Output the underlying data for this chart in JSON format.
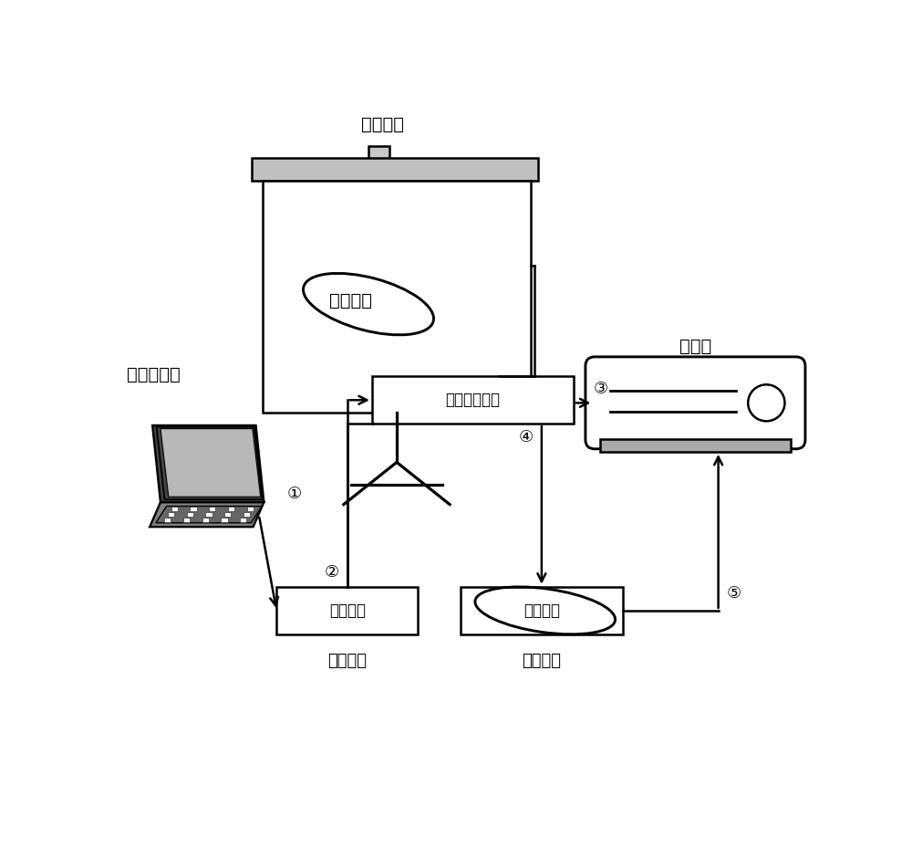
{
  "bg_color": "#ffffff",
  "text_color": "#000000",
  "label_screen": "白色幕布",
  "label_laptop": "笔记本电脑",
  "label_projector": "投影仪",
  "label_sys_box": "视频会议系统",
  "label_buf1_box": "视频会议",
  "label_buf2_box": "视频会议",
  "label_screen_content": "视频会议",
  "label_buf1_caption": "一级缓存",
  "label_buf2_caption": "二级缓存",
  "circle_1": "①",
  "circle_2": "②",
  "circle_3": "③",
  "circle_4": "④",
  "circle_5": "⑤",
  "lw": 1.8
}
